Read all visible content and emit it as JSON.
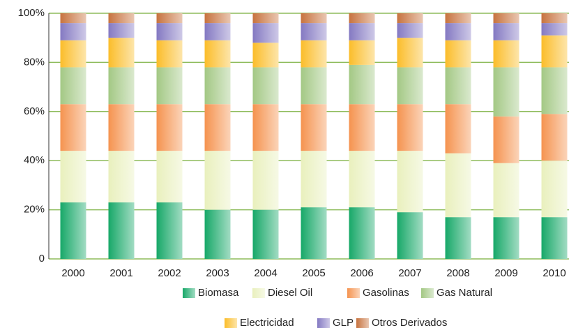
{
  "chart_data": {
    "type": "stacked_bar",
    "categories": [
      "2000",
      "2001",
      "2002",
      "2003",
      "2004",
      "2005",
      "2006",
      "2007",
      "2008",
      "2009",
      "2010"
    ],
    "series": [
      {
        "name": "Biomasa",
        "color": "#17a868",
        "values": [
          23,
          23,
          23,
          20,
          20,
          21,
          21,
          19,
          17,
          17,
          17
        ]
      },
      {
        "name": "Diesel Oil",
        "color": "#e9f0bd",
        "values": [
          21,
          21,
          21,
          24,
          24,
          23,
          23,
          25,
          26,
          22,
          23
        ]
      },
      {
        "name": "Gasolinas",
        "color": "#f5934f",
        "values": [
          19,
          19,
          19,
          19,
          19,
          19,
          19,
          19,
          20,
          19,
          19
        ]
      },
      {
        "name": "Gas Natural",
        "color": "#a3c884",
        "values": [
          15,
          15,
          15,
          15,
          15,
          15,
          16,
          15,
          15,
          20,
          19
        ]
      },
      {
        "name": "Electricidad",
        "color": "#fbbd2a",
        "values": [
          11,
          12,
          11,
          11,
          10,
          11,
          10,
          12,
          11,
          11,
          13
        ]
      },
      {
        "name": "GLP",
        "color": "#8479c2",
        "values": [
          7,
          6,
          7,
          7,
          8,
          7,
          7,
          6,
          7,
          7,
          5
        ]
      },
      {
        "name": "Otros Derivados",
        "color": "#c7733f",
        "values": [
          4,
          4,
          4,
          4,
          4,
          4,
          4,
          4,
          4,
          4,
          4
        ]
      }
    ],
    "ylim": [
      0,
      100
    ],
    "yticks": [
      0,
      {
        "value": 20,
        "label": "20%"
      },
      {
        "value": 40,
        "label": "40%"
      },
      {
        "value": 60,
        "label": "60%"
      },
      {
        "value": 80,
        "label": "80%"
      },
      {
        "value": 100,
        "label": "100%"
      }
    ],
    "grid": true,
    "grid_color": "#8dbb5a"
  }
}
